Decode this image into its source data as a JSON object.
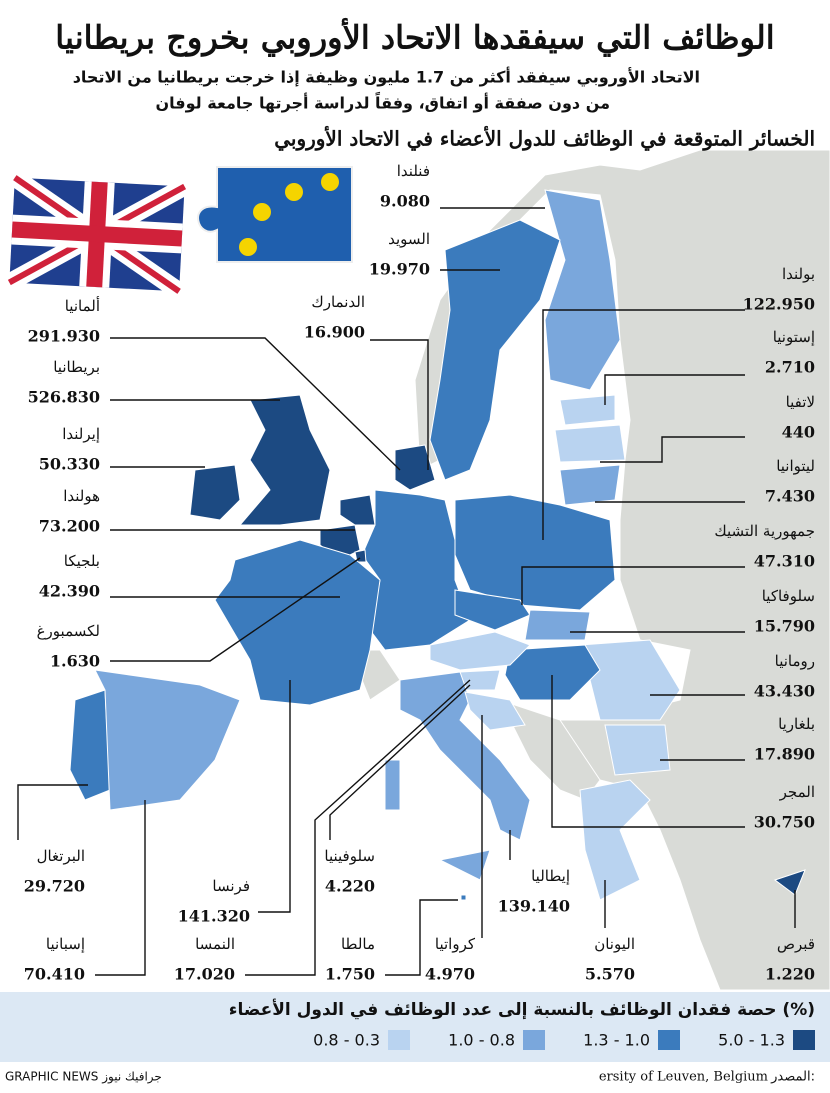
{
  "header": {
    "title": "الوظائف التي سيفقدها الاتحاد الأوروبي بخروج بريطانيا",
    "subtitle_lines": [
      "الاتحاد الأوروبي سيفقد أكثر من 1.7 مليون وظيفة إذا خرجت بريطانيا من الاتحاد",
      "من دون صفقة أو اتفاق، وفقاً لدراسة أجرتها جامعة لوفان"
    ],
    "section_title": "الخسائر المتوقعة في الوظائف للدول الأعضاء في الاتحاد الأوروبي"
  },
  "countries": [
    {
      "name": "فنلندا",
      "value": "9.080",
      "color": "#7aa7dc"
    },
    {
      "name": "السويد",
      "value": "19.970",
      "color": "#3b7bbd"
    },
    {
      "name": "الدنمارك",
      "value": "16.900",
      "color": "#1c4a82"
    },
    {
      "name": "ألمانيا",
      "value": "291.930",
      "color": "#3b7bbd"
    },
    {
      "name": "بريطانيا",
      "value": "526.830",
      "color": "#1c4a82"
    },
    {
      "name": "إيرلندا",
      "value": "50.330",
      "color": "#1c4a82"
    },
    {
      "name": "هولندا",
      "value": "73.200",
      "color": "#1c4a82"
    },
    {
      "name": "بلجيكا",
      "value": "42.390",
      "color": "#1c4a82"
    },
    {
      "name": "لكسمبورغ",
      "value": "1.630",
      "color": "#1c4a82"
    },
    {
      "name": "بولندا",
      "value": "122.950",
      "color": "#3b7bbd"
    },
    {
      "name": "إستونيا",
      "value": "2.710",
      "color": "#b9d3f0"
    },
    {
      "name": "لاتفيا",
      "value": "440",
      "color": "#b9d3f0"
    },
    {
      "name": "ليتوانيا",
      "value": "7.430",
      "color": "#7aa7dc"
    },
    {
      "name": "جمهورية التشيك",
      "value": "47.310",
      "color": "#3b7bbd"
    },
    {
      "name": "سلوفاكيا",
      "value": "15.790",
      "color": "#7aa7dc"
    },
    {
      "name": "رومانيا",
      "value": "43.430",
      "color": "#b9d3f0"
    },
    {
      "name": "بلغاريا",
      "value": "17.890",
      "color": "#b9d3f0"
    },
    {
      "name": "المجر",
      "value": "30.750",
      "color": "#3b7bbd"
    },
    {
      "name": "البرتغال",
      "value": "29.720",
      "color": "#3b7bbd"
    },
    {
      "name": "فرنسا",
      "value": "141.320",
      "color": "#3b7bbd"
    },
    {
      "name": "سلوفينيا",
      "value": "4.220",
      "color": "#b9d3f0"
    },
    {
      "name": "إيطاليا",
      "value": "139.140",
      "color": "#7aa7dc"
    },
    {
      "name": "إسبانيا",
      "value": "70.410",
      "color": "#7aa7dc"
    },
    {
      "name": "النمسا",
      "value": "17.020",
      "color": "#b9d3f0"
    },
    {
      "name": "مالطا",
      "value": "1.750",
      "color": "#3b7bbd"
    },
    {
      "name": "كرواتيا",
      "value": "4.970",
      "color": "#b9d3f0"
    },
    {
      "name": "اليونان",
      "value": "5.570",
      "color": "#b9d3f0"
    },
    {
      "name": "قبرص",
      "value": "1.220",
      "color": "#1c4a82"
    }
  ],
  "legend": {
    "title": "حصة فقدان الوظائف بالنسبة إلى عدد الوظائف في الدول الأعضاء (%)",
    "items": [
      {
        "label": "5.0 - 1.3",
        "color": "#1c4a82"
      },
      {
        "label": "1.3 - 1.0",
        "color": "#3b7bbd"
      },
      {
        "label": "1.0 - 0.8",
        "color": "#7aa7dc"
      },
      {
        "label": "0.8 - 0.3",
        "color": "#b9d3f0"
      }
    ]
  },
  "footer": {
    "source_label": "المصدر:",
    "source": "ersity of Leuven, Belgium",
    "credit": "GRAPHIC NEWS جرافيك نيوز"
  }
}
